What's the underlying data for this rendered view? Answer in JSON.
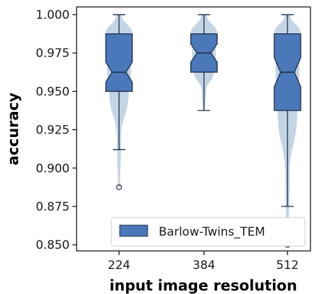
{
  "chart_data": {
    "type": "box",
    "xlabel": "input image resolution",
    "ylabel": "accuracy",
    "ylim": [
      0.846,
      1.005
    ],
    "yticks": [
      "0.850",
      "0.875",
      "0.900",
      "0.925",
      "0.950",
      "0.975",
      "1.000"
    ],
    "ytick_values": [
      0.85,
      0.875,
      0.9,
      0.925,
      0.95,
      0.975,
      1.0
    ],
    "categories": [
      "224",
      "384",
      "512"
    ],
    "series": [
      {
        "name": "Barlow-Twins_TEM",
        "color": "#4a78b8",
        "violin_color": "#b8cce0",
        "boxes": [
          {
            "category": "224",
            "whisker_low": 0.912,
            "q1": 0.95,
            "median": 0.9625,
            "q3": 0.9875,
            "whisker_high": 1.0,
            "notch_low": 0.956,
            "notch_high": 0.969,
            "outliers": [
              0.8875
            ],
            "violin_min": 0.8875,
            "violin_max": 1.0
          },
          {
            "category": "384",
            "whisker_low": 0.9375,
            "q1": 0.9625,
            "median": 0.975,
            "q3": 0.9875,
            "whisker_high": 1.0,
            "notch_low": 0.969,
            "notch_high": 0.981,
            "outliers": [],
            "violin_min": 0.9375,
            "violin_max": 1.0
          },
          {
            "category": "512",
            "whisker_low": 0.875,
            "q1": 0.9375,
            "median": 0.9625,
            "q3": 0.9875,
            "whisker_high": 1.0,
            "notch_low": 0.953,
            "notch_high": 0.972,
            "outliers": [
              0.85
            ],
            "violin_min": 0.85,
            "violin_max": 1.0
          }
        ]
      }
    ],
    "legend_position": "bottom-right",
    "grid": false
  }
}
